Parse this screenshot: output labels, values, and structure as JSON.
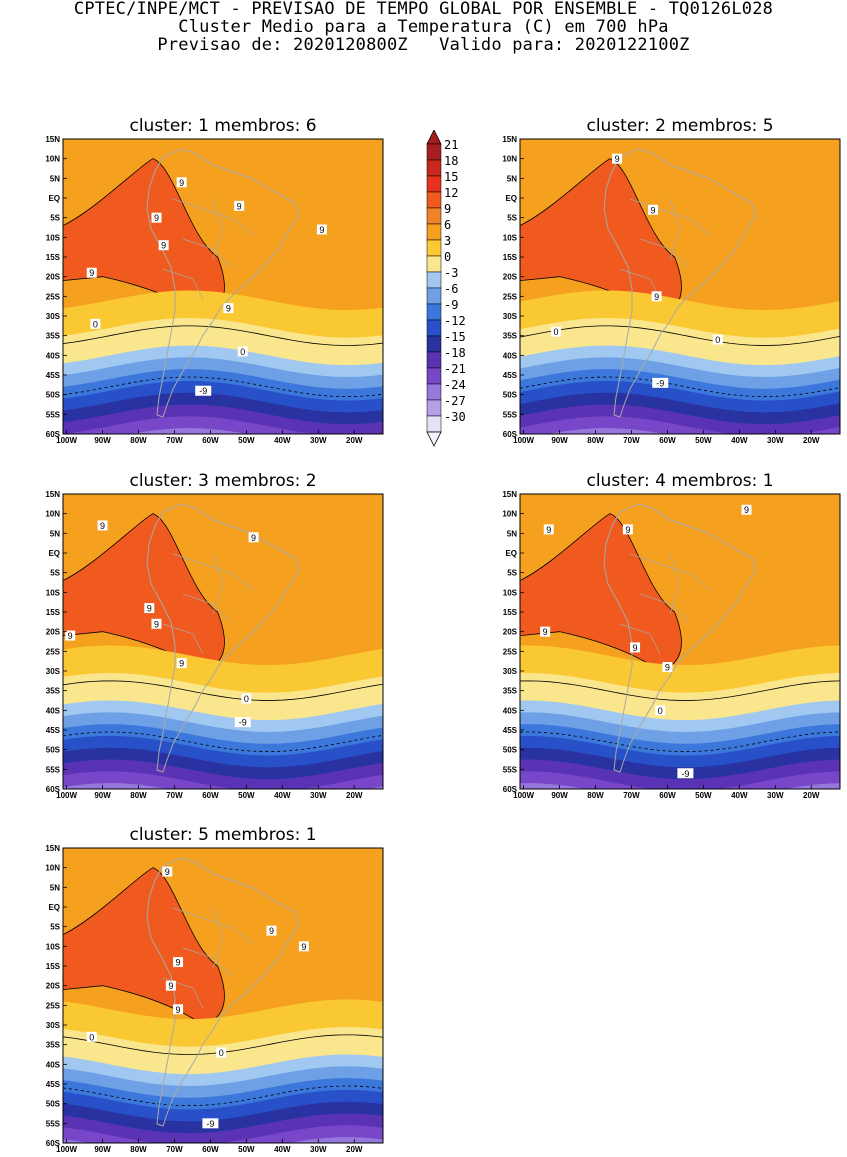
{
  "header": {
    "line1": "CPTEC/INPE/MCT - PREVISAO DE TEMPO GLOBAL POR ENSEMBLE - TQ0126L028",
    "line2": "Cluster Medio para a Temperatura (C) em 700 hPa",
    "line3": "Previsao de: 2020120800Z   Valido para: 2020122100Z"
  },
  "axes": {
    "lat_labels": [
      "15N",
      "10N",
      "5N",
      "EQ",
      "5S",
      "10S",
      "15S",
      "20S",
      "25S",
      "30S",
      "35S",
      "40S",
      "45S",
      "50S",
      "55S",
      "60S"
    ],
    "lon_labels": [
      "100W",
      "90W",
      "80W",
      "70W",
      "60W",
      "50W",
      "40W",
      "30W",
      "20W"
    ]
  },
  "colorbar": {
    "labels": [
      "21",
      "18",
      "15",
      "12",
      "9",
      "6",
      "3",
      "0",
      "-3",
      "-6",
      "-9",
      "-12",
      "-15",
      "-18",
      "-21",
      "-24",
      "-27",
      "-30"
    ],
    "colors": [
      "#a81e1e",
      "#c8281e",
      "#e6321e",
      "#f05a1e",
      "#f08228",
      "#f5a01e",
      "#fac832",
      "#fae68c",
      "#a0c8f0",
      "#6ea0e6",
      "#3c78dc",
      "#2850c8",
      "#2832a0",
      "#5a32b4",
      "#7846c8",
      "#9678dc",
      "#b4a0e6",
      "#e6e1f5"
    ]
  },
  "panels": [
    {
      "title": "cluster: 1   membros: 6",
      "contour_labels": [
        {
          "t": "9",
          "lon": -93,
          "lat": -19
        },
        {
          "t": "9",
          "lon": -75,
          "lat": -5
        },
        {
          "t": "9",
          "lon": -73,
          "lat": -12
        },
        {
          "t": "9",
          "lon": -68,
          "lat": 4
        },
        {
          "t": "9",
          "lon": -52,
          "lat": -2
        },
        {
          "t": "9",
          "lon": -29,
          "lat": -8
        },
        {
          "t": "9",
          "lon": -55,
          "lat": -28
        },
        {
          "t": "0",
          "lon": -92,
          "lat": -32
        },
        {
          "t": "0",
          "lon": -51,
          "lat": -39
        },
        {
          "t": "-9",
          "lon": -62,
          "lat": -49
        }
      ]
    },
    {
      "title": "cluster: 2   membros: 5",
      "contour_labels": [
        {
          "t": "9",
          "lon": -74,
          "lat": 10
        },
        {
          "t": "9",
          "lon": -64,
          "lat": -3
        },
        {
          "t": "9",
          "lon": -63,
          "lat": -25
        },
        {
          "t": "0",
          "lon": -91,
          "lat": -34
        },
        {
          "t": "0",
          "lon": -46,
          "lat": -36
        },
        {
          "t": "-9",
          "lon": -62,
          "lat": -47
        }
      ]
    },
    {
      "title": "cluster: 3   membros: 2",
      "contour_labels": [
        {
          "t": "9",
          "lon": -90,
          "lat": 7
        },
        {
          "t": "9",
          "lon": -48,
          "lat": 4
        },
        {
          "t": "9",
          "lon": -77,
          "lat": -14
        },
        {
          "t": "9",
          "lon": -75,
          "lat": -18
        },
        {
          "t": "9",
          "lon": -99,
          "lat": -21
        },
        {
          "t": "9",
          "lon": -68,
          "lat": -28
        },
        {
          "t": "0",
          "lon": -50,
          "lat": -37
        },
        {
          "t": "-9",
          "lon": -51,
          "lat": -43
        }
      ]
    },
    {
      "title": "cluster: 4   membros: 1",
      "contour_labels": [
        {
          "t": "9",
          "lon": -38,
          "lat": 11
        },
        {
          "t": "9",
          "lon": -93,
          "lat": 6
        },
        {
          "t": "9",
          "lon": -71,
          "lat": 6
        },
        {
          "t": "9",
          "lon": -94,
          "lat": -20
        },
        {
          "t": "9",
          "lon": -69,
          "lat": -24
        },
        {
          "t": "9",
          "lon": -60,
          "lat": -29
        },
        {
          "t": "0",
          "lon": -62,
          "lat": -40
        },
        {
          "t": "-9",
          "lon": -55,
          "lat": -56
        }
      ]
    },
    {
      "title": "cluster: 5   membros: 1",
      "contour_labels": [
        {
          "t": "9",
          "lon": -72,
          "lat": 9
        },
        {
          "t": "9",
          "lon": -43,
          "lat": -6
        },
        {
          "t": "9",
          "lon": -34,
          "lat": -10
        },
        {
          "t": "9",
          "lon": -69,
          "lat": -14
        },
        {
          "t": "9",
          "lon": -71,
          "lat": -20
        },
        {
          "t": "9",
          "lon": -69,
          "lat": -26
        },
        {
          "t": "0",
          "lon": -93,
          "lat": -33
        },
        {
          "t": "0",
          "lon": -57,
          "lat": -37
        },
        {
          "t": "-9",
          "lon": -60,
          "lat": -55
        }
      ]
    }
  ]
}
